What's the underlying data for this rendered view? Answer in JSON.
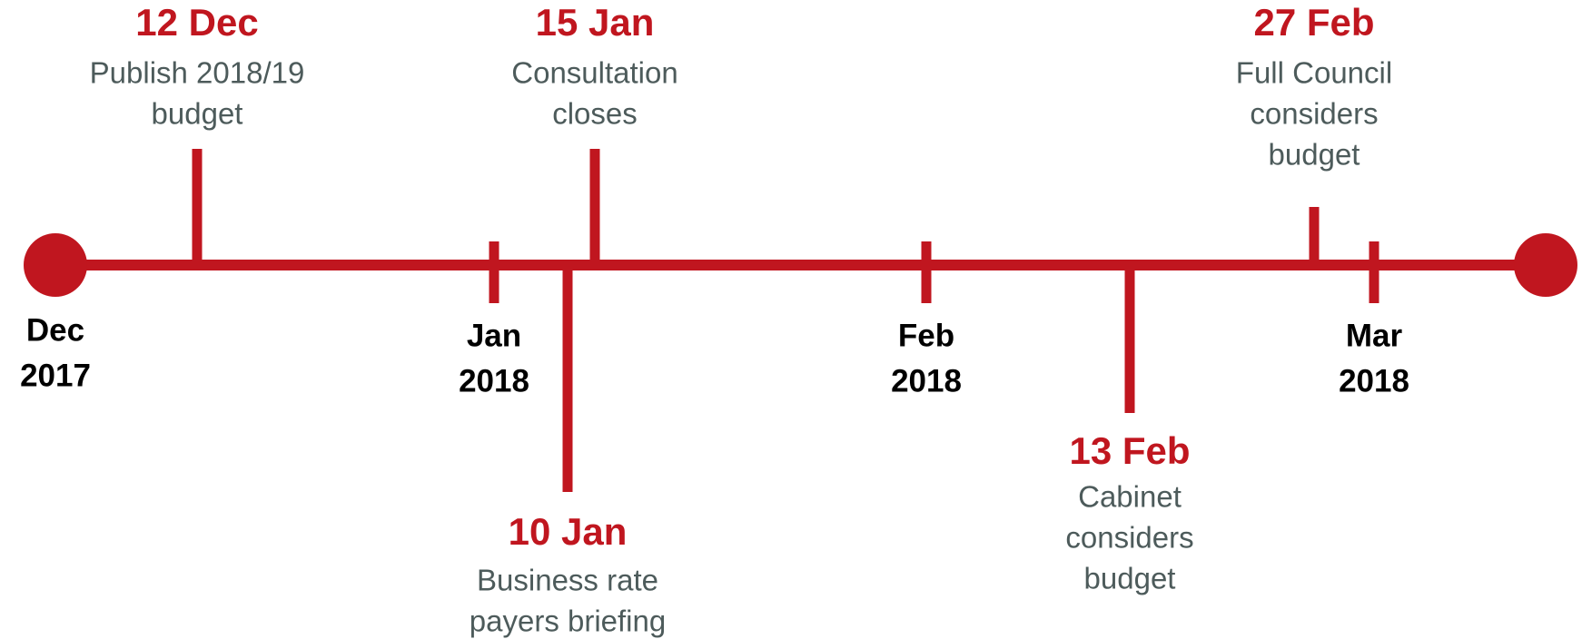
{
  "months": [
    {
      "month": "Dec",
      "year": "2017"
    },
    {
      "month": "Jan",
      "year": "2018"
    },
    {
      "month": "Feb",
      "year": "2018"
    },
    {
      "month": "Mar",
      "year": "2018"
    }
  ],
  "events": [
    {
      "date": "12 Dec",
      "description": [
        "Publish 2018/19",
        "budget"
      ]
    },
    {
      "date": "15 Jan",
      "description": [
        "Consultation",
        "closes"
      ]
    },
    {
      "date": "10 Jan",
      "description": [
        "Business rate",
        "payers briefing"
      ]
    },
    {
      "date": "13 Feb",
      "description": [
        "Cabinet",
        "considers",
        "budget"
      ]
    },
    {
      "date": "27 Feb",
      "description": [
        "Full Council",
        "considers",
        "budget"
      ]
    }
  ]
}
